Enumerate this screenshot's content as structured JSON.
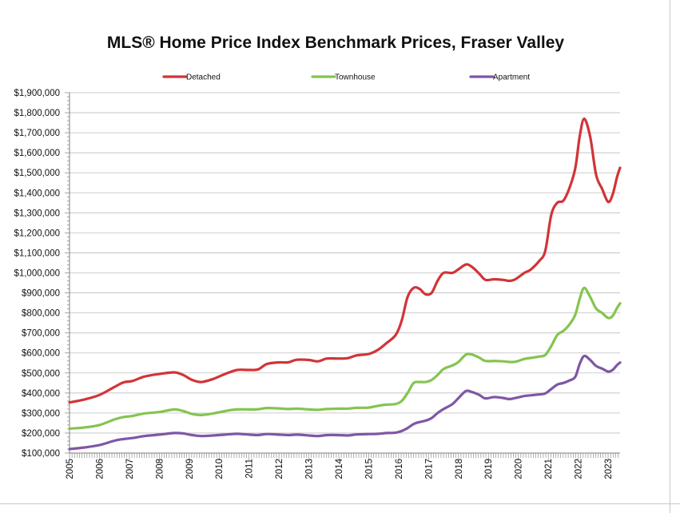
{
  "chart_data": {
    "type": "line",
    "title": "MLS® Home Price Index Benchmark Prices, Fraser Valley",
    "xlabel": "",
    "ylabel": "",
    "xlim": [
      2005,
      2023.4
    ],
    "ylim": [
      100000,
      1900000
    ],
    "y_ticks": [
      100000,
      200000,
      300000,
      400000,
      500000,
      600000,
      700000,
      800000,
      900000,
      1000000,
      1100000,
      1200000,
      1300000,
      1400000,
      1500000,
      1600000,
      1700000,
      1800000,
      1900000
    ],
    "y_tick_labels": [
      "$100,000",
      "$200,000",
      "$300,000",
      "$400,000",
      "$500,000",
      "$600,000",
      "$700,000",
      "$800,000",
      "$900,000",
      "$1,000,000",
      "$1,100,000",
      "$1,200,000",
      "$1,300,000",
      "$1,400,000",
      "$1,500,000",
      "$1,600,000",
      "$1,700,000",
      "$1,800,000",
      "$1,900,000"
    ],
    "x_tick_labels": [
      "2005",
      "2006",
      "2007",
      "2008",
      "2009",
      "2010",
      "2011",
      "2012",
      "2013",
      "2014",
      "2015",
      "2016",
      "2017",
      "2018",
      "2019",
      "2020",
      "2021",
      "2022",
      "2023"
    ],
    "grid": true,
    "legend_position": "top",
    "series": [
      {
        "name": "Detached",
        "color": "#d13438",
        "points": [
          [
            2005,
            353000
          ],
          [
            2005.5,
            368000
          ],
          [
            2006,
            390000
          ],
          [
            2006.5,
            430000
          ],
          [
            2006.8,
            453000
          ],
          [
            2007.1,
            460000
          ],
          [
            2007.5,
            482000
          ],
          [
            2008,
            495000
          ],
          [
            2008.5,
            503000
          ],
          [
            2008.8,
            490000
          ],
          [
            2009.1,
            465000
          ],
          [
            2009.4,
            455000
          ],
          [
            2009.8,
            470000
          ],
          [
            2010.2,
            495000
          ],
          [
            2010.6,
            515000
          ],
          [
            2011,
            515000
          ],
          [
            2011.3,
            518000
          ],
          [
            2011.6,
            545000
          ],
          [
            2012,
            553000
          ],
          [
            2012.3,
            553000
          ],
          [
            2012.6,
            566000
          ],
          [
            2013,
            565000
          ],
          [
            2013.3,
            558000
          ],
          [
            2013.6,
            572000
          ],
          [
            2014,
            572000
          ],
          [
            2014.3,
            574000
          ],
          [
            2014.6,
            588000
          ],
          [
            2015,
            595000
          ],
          [
            2015.3,
            615000
          ],
          [
            2015.6,
            650000
          ],
          [
            2015.9,
            690000
          ],
          [
            2016.1,
            760000
          ],
          [
            2016.3,
            880000
          ],
          [
            2016.5,
            925000
          ],
          [
            2016.7,
            920000
          ],
          [
            2016.9,
            893000
          ],
          [
            2017.1,
            900000
          ],
          [
            2017.3,
            960000
          ],
          [
            2017.5,
            1000000
          ],
          [
            2017.8,
            1000000
          ],
          [
            2018,
            1018000
          ],
          [
            2018.25,
            1042000
          ],
          [
            2018.45,
            1030000
          ],
          [
            2018.7,
            995000
          ],
          [
            2018.9,
            965000
          ],
          [
            2019.2,
            968000
          ],
          [
            2019.5,
            965000
          ],
          [
            2019.7,
            960000
          ],
          [
            2019.9,
            968000
          ],
          [
            2020.2,
            1000000
          ],
          [
            2020.4,
            1015000
          ],
          [
            2020.7,
            1060000
          ],
          [
            2020.9,
            1110000
          ],
          [
            2021.1,
            1290000
          ],
          [
            2021.3,
            1350000
          ],
          [
            2021.5,
            1360000
          ],
          [
            2021.7,
            1420000
          ],
          [
            2021.9,
            1520000
          ],
          [
            2022.05,
            1680000
          ],
          [
            2022.2,
            1770000
          ],
          [
            2022.4,
            1680000
          ],
          [
            2022.6,
            1490000
          ],
          [
            2022.8,
            1420000
          ],
          [
            2023,
            1355000
          ],
          [
            2023.15,
            1390000
          ],
          [
            2023.3,
            1480000
          ],
          [
            2023.4,
            1525000
          ]
        ]
      },
      {
        "name": "Townhouse",
        "color": "#84c450",
        "points": [
          [
            2005,
            222000
          ],
          [
            2005.5,
            228000
          ],
          [
            2006,
            240000
          ],
          [
            2006.5,
            268000
          ],
          [
            2006.8,
            280000
          ],
          [
            2007.1,
            285000
          ],
          [
            2007.5,
            298000
          ],
          [
            2008,
            305000
          ],
          [
            2008.5,
            318000
          ],
          [
            2008.8,
            310000
          ],
          [
            2009.1,
            295000
          ],
          [
            2009.4,
            290000
          ],
          [
            2009.8,
            298000
          ],
          [
            2010.2,
            310000
          ],
          [
            2010.6,
            318000
          ],
          [
            2011,
            318000
          ],
          [
            2011.3,
            319000
          ],
          [
            2011.6,
            325000
          ],
          [
            2012,
            323000
          ],
          [
            2012.3,
            320000
          ],
          [
            2012.6,
            322000
          ],
          [
            2013,
            318000
          ],
          [
            2013.3,
            316000
          ],
          [
            2013.6,
            320000
          ],
          [
            2014,
            322000
          ],
          [
            2014.3,
            322000
          ],
          [
            2014.6,
            326000
          ],
          [
            2015,
            327000
          ],
          [
            2015.3,
            336000
          ],
          [
            2015.6,
            342000
          ],
          [
            2015.9,
            345000
          ],
          [
            2016.1,
            360000
          ],
          [
            2016.3,
            400000
          ],
          [
            2016.5,
            450000
          ],
          [
            2016.7,
            455000
          ],
          [
            2016.9,
            455000
          ],
          [
            2017.1,
            465000
          ],
          [
            2017.3,
            490000
          ],
          [
            2017.5,
            520000
          ],
          [
            2017.8,
            538000
          ],
          [
            2018,
            555000
          ],
          [
            2018.25,
            592000
          ],
          [
            2018.45,
            592000
          ],
          [
            2018.7,
            576000
          ],
          [
            2018.9,
            560000
          ],
          [
            2019.2,
            560000
          ],
          [
            2019.5,
            558000
          ],
          [
            2019.7,
            555000
          ],
          [
            2019.9,
            556000
          ],
          [
            2020.2,
            570000
          ],
          [
            2020.4,
            575000
          ],
          [
            2020.7,
            582000
          ],
          [
            2020.9,
            590000
          ],
          [
            2021.1,
            635000
          ],
          [
            2021.3,
            690000
          ],
          [
            2021.5,
            710000
          ],
          [
            2021.7,
            740000
          ],
          [
            2021.9,
            790000
          ],
          [
            2022.05,
            870000
          ],
          [
            2022.2,
            925000
          ],
          [
            2022.4,
            880000
          ],
          [
            2022.6,
            822000
          ],
          [
            2022.8,
            800000
          ],
          [
            2023,
            775000
          ],
          [
            2023.15,
            785000
          ],
          [
            2023.3,
            825000
          ],
          [
            2023.4,
            848000
          ]
        ]
      },
      {
        "name": "Apartment",
        "color": "#7f56a6",
        "points": [
          [
            2005,
            120000
          ],
          [
            2005.5,
            128000
          ],
          [
            2006,
            140000
          ],
          [
            2006.5,
            162000
          ],
          [
            2006.8,
            170000
          ],
          [
            2007.1,
            175000
          ],
          [
            2007.5,
            185000
          ],
          [
            2008,
            192000
          ],
          [
            2008.5,
            200000
          ],
          [
            2008.8,
            198000
          ],
          [
            2009.1,
            190000
          ],
          [
            2009.4,
            185000
          ],
          [
            2009.8,
            188000
          ],
          [
            2010.2,
            192000
          ],
          [
            2010.6,
            196000
          ],
          [
            2011,
            192000
          ],
          [
            2011.3,
            190000
          ],
          [
            2011.6,
            195000
          ],
          [
            2012,
            192000
          ],
          [
            2012.3,
            190000
          ],
          [
            2012.6,
            192000
          ],
          [
            2013,
            188000
          ],
          [
            2013.3,
            185000
          ],
          [
            2013.6,
            190000
          ],
          [
            2014,
            190000
          ],
          [
            2014.3,
            188000
          ],
          [
            2014.6,
            193000
          ],
          [
            2015,
            195000
          ],
          [
            2015.3,
            196000
          ],
          [
            2015.6,
            200000
          ],
          [
            2015.9,
            202000
          ],
          [
            2016.1,
            210000
          ],
          [
            2016.3,
            225000
          ],
          [
            2016.5,
            245000
          ],
          [
            2016.7,
            255000
          ],
          [
            2016.9,
            262000
          ],
          [
            2017.1,
            275000
          ],
          [
            2017.3,
            300000
          ],
          [
            2017.5,
            320000
          ],
          [
            2017.8,
            345000
          ],
          [
            2018,
            375000
          ],
          [
            2018.25,
            410000
          ],
          [
            2018.45,
            405000
          ],
          [
            2018.7,
            390000
          ],
          [
            2018.9,
            373000
          ],
          [
            2019.2,
            380000
          ],
          [
            2019.5,
            375000
          ],
          [
            2019.7,
            370000
          ],
          [
            2019.9,
            375000
          ],
          [
            2020.2,
            385000
          ],
          [
            2020.4,
            388000
          ],
          [
            2020.7,
            393000
          ],
          [
            2020.9,
            398000
          ],
          [
            2021.1,
            420000
          ],
          [
            2021.3,
            442000
          ],
          [
            2021.5,
            450000
          ],
          [
            2021.7,
            462000
          ],
          [
            2021.9,
            480000
          ],
          [
            2022.05,
            545000
          ],
          [
            2022.2,
            585000
          ],
          [
            2022.4,
            565000
          ],
          [
            2022.6,
            535000
          ],
          [
            2022.8,
            522000
          ],
          [
            2023,
            507000
          ],
          [
            2023.15,
            515000
          ],
          [
            2023.3,
            540000
          ],
          [
            2023.4,
            552000
          ]
        ]
      }
    ]
  }
}
